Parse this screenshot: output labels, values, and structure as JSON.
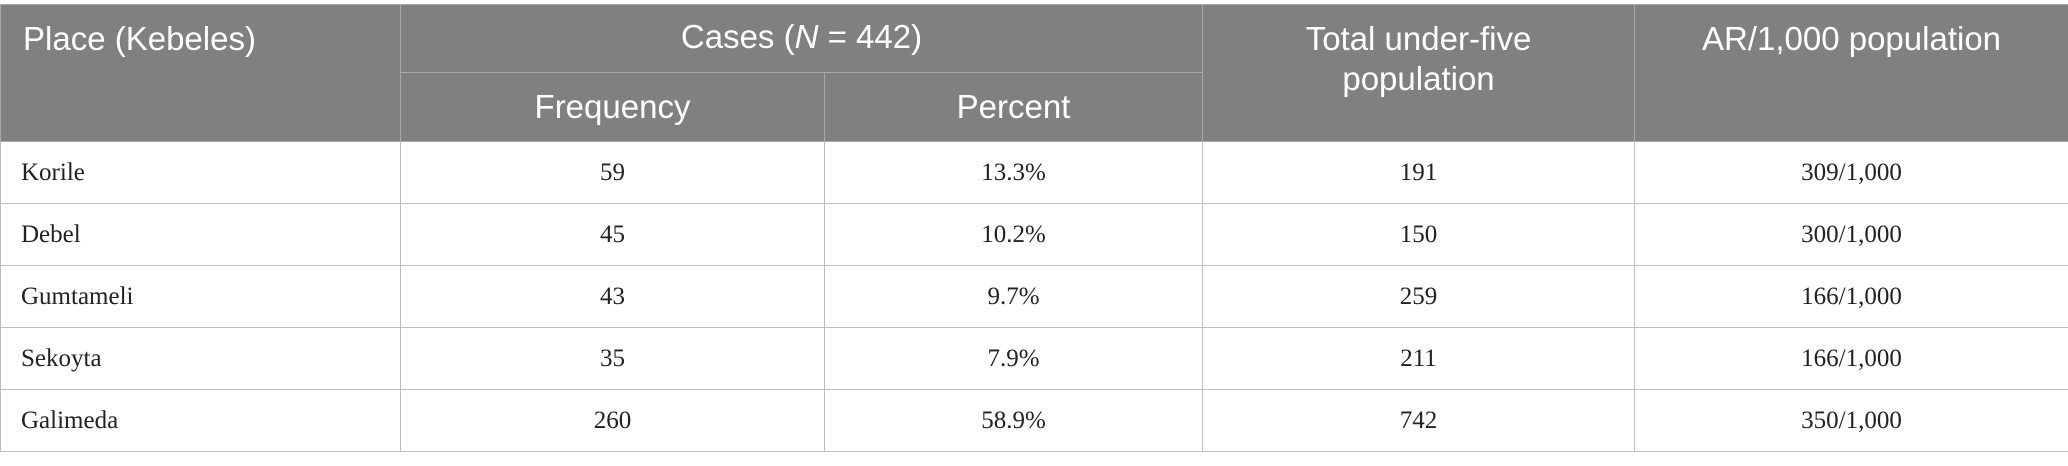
{
  "table": {
    "header": {
      "place": "Place (Kebeles)",
      "cases": {
        "prefix": "Cases (",
        "italic": "N",
        "suffix": " = 442)"
      },
      "frequency": "Frequency",
      "percent": "Percent",
      "total": "Total under-five population",
      "ar": "AR/1,000 population"
    },
    "rows": [
      [
        "Korile",
        "59",
        "13.3%",
        "191",
        "309/1,000"
      ],
      [
        "Debel",
        "45",
        "10.2%",
        "150",
        "300/1,000"
      ],
      [
        "Gumtameli",
        "43",
        "9.7%",
        "259",
        "166/1,000"
      ],
      [
        "Sekoyta",
        "35",
        "7.9%",
        "211",
        "166/1,000"
      ],
      [
        "Galimeda",
        "260",
        "58.9%",
        "742",
        "350/1,000"
      ]
    ]
  }
}
